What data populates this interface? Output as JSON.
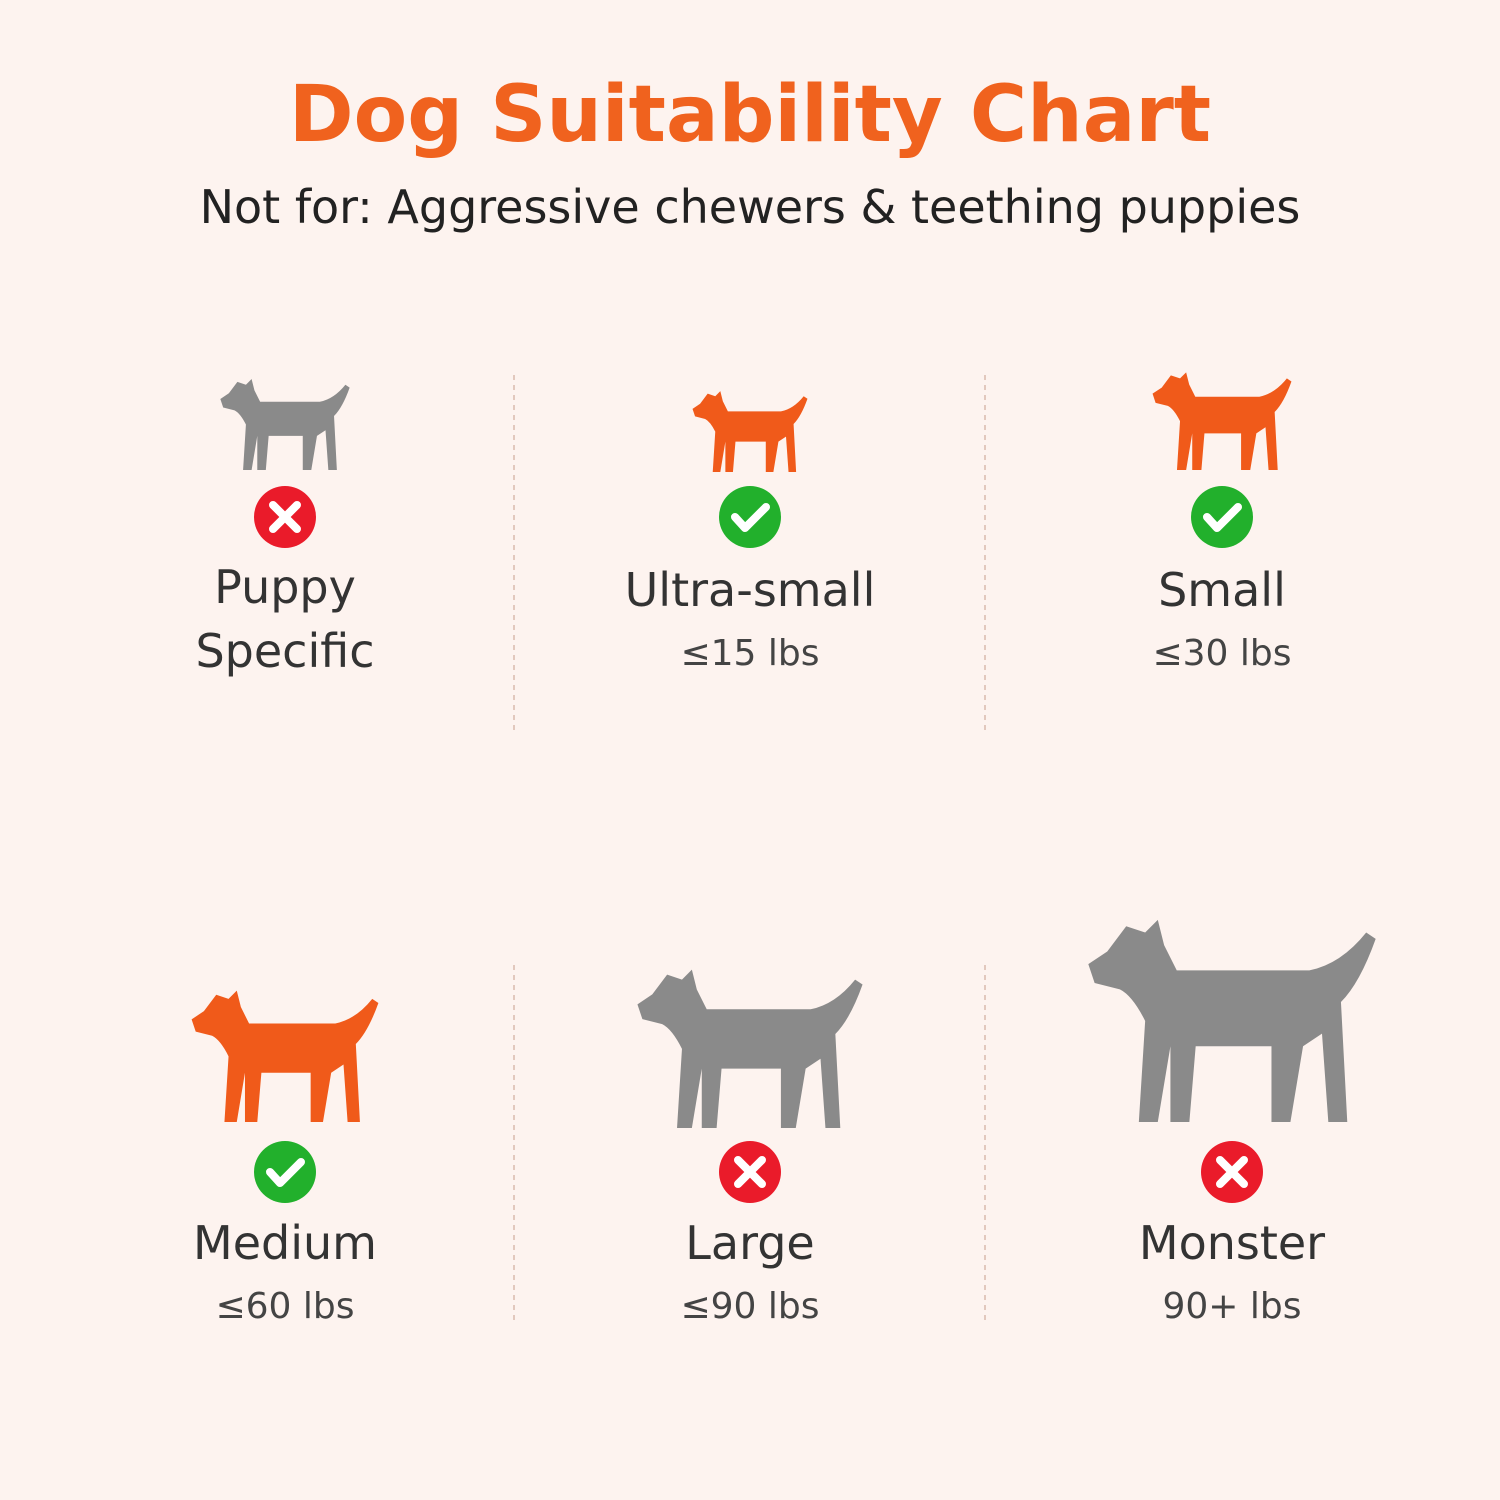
{
  "header": {
    "title": "Dog Suitability Chart",
    "subtitle": "Not for: Aggressive chewers & teething puppies"
  },
  "items": [
    {
      "label": "Puppy Specific",
      "suitable": false
    },
    {
      "label": "Ultra-small",
      "weight": "≤15 lbs",
      "suitable": true
    },
    {
      "label": "Small",
      "weight": "≤30 lbs",
      "suitable": true
    },
    {
      "label": "Medium",
      "weight": "≤60 lbs",
      "suitable": true
    },
    {
      "label": "Large",
      "weight": "≤90 lbs",
      "suitable": false
    },
    {
      "label": "Monster",
      "weight": "90+ lbs",
      "suitable": false
    }
  ]
}
